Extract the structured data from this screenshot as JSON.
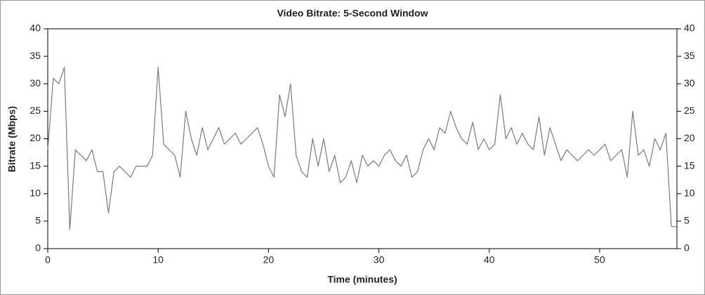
{
  "chart_data": {
    "type": "line",
    "title": "Video Bitrate: 5-Second Window",
    "x_label": "Time (minutes)",
    "y_label": "Bitrate (Mbps)",
    "color": "#7a7a7a",
    "xlim": [
      0,
      57
    ],
    "xticks": [
      0,
      10,
      20,
      30,
      40,
      50
    ],
    "ylim": [
      0,
      40
    ],
    "yticks": [
      0,
      5,
      10,
      15,
      20,
      25,
      30,
      35,
      40
    ],
    "y2lim": [
      0,
      40
    ],
    "y2ticks": [
      0,
      5,
      10,
      15,
      20,
      25,
      30,
      35,
      40
    ],
    "x": [
      0,
      0.5,
      1,
      1.5,
      2,
      2.5,
      3,
      3.5,
      4,
      4.5,
      5,
      5.5,
      6,
      6.5,
      7,
      7.5,
      8,
      8.5,
      9,
      9.5,
      10,
      10.5,
      11,
      11.5,
      12,
      12.5,
      13,
      13.5,
      14,
      14.5,
      15,
      15.5,
      16,
      16.5,
      17,
      17.5,
      18,
      18.5,
      19,
      19.5,
      20,
      20.5,
      21,
      21.5,
      22,
      22.5,
      23,
      23.5,
      24,
      24.5,
      25,
      25.5,
      26,
      26.5,
      27,
      27.5,
      28,
      28.5,
      29,
      29.5,
      30,
      30.5,
      31,
      31.5,
      32,
      32.5,
      33,
      33.5,
      34,
      34.5,
      35,
      35.5,
      36,
      36.5,
      37,
      37.5,
      38,
      38.5,
      39,
      39.5,
      40,
      40.5,
      41,
      41.5,
      42,
      42.5,
      43,
      43.5,
      44,
      44.5,
      45,
      45.5,
      46,
      46.5,
      47,
      47.5,
      48,
      48.5,
      49,
      49.5,
      50,
      50.5,
      51,
      51.5,
      52,
      52.5,
      53,
      53.5,
      54,
      54.5,
      55,
      55.5,
      56,
      56.5,
      57
    ],
    "values": [
      18,
      31,
      30,
      33,
      3.5,
      18,
      17,
      16,
      18,
      14,
      14,
      6.5,
      14,
      15,
      14,
      13,
      15,
      15,
      15,
      17,
      33,
      19,
      18,
      17,
      13,
      25,
      20,
      17,
      22,
      18,
      20,
      22,
      19,
      20,
      21,
      19,
      20,
      21,
      22,
      19,
      15,
      13,
      28,
      24,
      30,
      17,
      14,
      13,
      20,
      15,
      20,
      14,
      17,
      12,
      13,
      16,
      12,
      17,
      15,
      16,
      15,
      17,
      18,
      16,
      15,
      17,
      13,
      14,
      18,
      20,
      18,
      22,
      21,
      25,
      22,
      20,
      19,
      23,
      18,
      20,
      18,
      19,
      28,
      20,
      22,
      19,
      21,
      19,
      18,
      24,
      17,
      22,
      19,
      16,
      18,
      17,
      16,
      17,
      18,
      17,
      18,
      19,
      16,
      17,
      18,
      13,
      25,
      17,
      18,
      15,
      20,
      18,
      21,
      4,
      4
    ]
  }
}
